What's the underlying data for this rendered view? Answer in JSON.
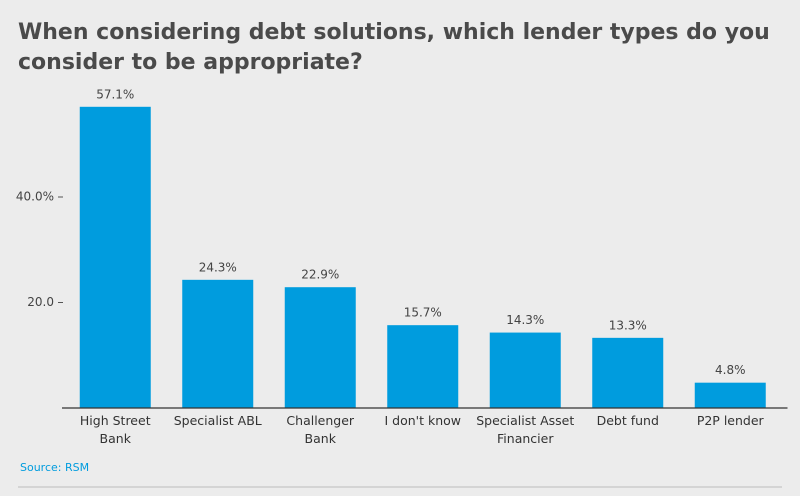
{
  "chart_data": {
    "type": "bar",
    "title": "When considering debt solutions, which lender types do you consider to be appropriate?",
    "categories": [
      "High Street\nBank",
      "Specialist ABL",
      "Challenger\nBank",
      "I don't know",
      "Specialist Asset\nFinancier",
      "Debt fund",
      "P2P lender"
    ],
    "values": [
      57.1,
      24.3,
      22.9,
      15.7,
      14.3,
      13.3,
      4.8
    ],
    "value_labels": [
      "57.1%",
      "24.3%",
      "22.9%",
      "15.7%",
      "14.3%",
      "13.3%",
      "4.8%"
    ],
    "color": "#009cde",
    "ylim": [
      0,
      60
    ],
    "yticks": [
      {
        "value": 20,
        "label": "20.0"
      },
      {
        "value": 40,
        "label": "40.0%"
      }
    ],
    "grid": false,
    "source": "Source: RSM"
  }
}
